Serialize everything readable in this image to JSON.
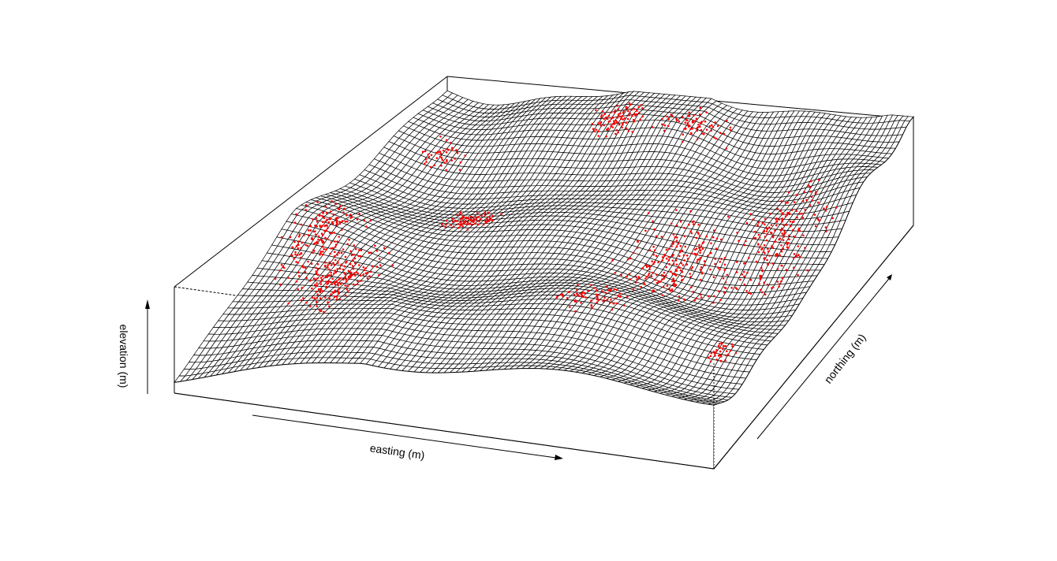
{
  "chart_data": {
    "type": "surface3d",
    "title": "",
    "xlabel": "easting (m)",
    "ylabel": "northing (m)",
    "zlabel": "elevation (m)",
    "axes": "labels only, no ticks, arrows indicate direction",
    "surface": {
      "style": "wireframe mesh",
      "line_color": "#000000",
      "grid": [
        90,
        56
      ],
      "description_values": "synthetic terrain with rolling ridges, rising toward the back"
    },
    "points": {
      "name": "",
      "color": "#ff0000",
      "clusters": [
        {
          "cx": 0.07,
          "cy": 0.4,
          "n": 170,
          "sx": 0.05,
          "sy": 0.09
        },
        {
          "cx": 0.16,
          "cy": 0.3,
          "n": 190,
          "sx": 0.05,
          "sy": 0.1
        },
        {
          "cx": 0.27,
          "cy": 0.58,
          "n": 80,
          "sx": 0.05,
          "sy": 0.04
        },
        {
          "cx": 0.1,
          "cy": 0.8,
          "n": 40,
          "sx": 0.04,
          "sy": 0.04
        },
        {
          "cx": 0.42,
          "cy": 0.9,
          "n": 90,
          "sx": 0.05,
          "sy": 0.04
        },
        {
          "cx": 0.58,
          "cy": 0.9,
          "n": 70,
          "sx": 0.06,
          "sy": 0.04
        },
        {
          "cx": 0.66,
          "cy": 0.28,
          "n": 70,
          "sx": 0.05,
          "sy": 0.05
        },
        {
          "cx": 0.72,
          "cy": 0.52,
          "n": 210,
          "sx": 0.08,
          "sy": 0.11
        },
        {
          "cx": 0.88,
          "cy": 0.62,
          "n": 220,
          "sx": 0.07,
          "sy": 0.14
        },
        {
          "cx": 0.93,
          "cy": 0.22,
          "n": 35,
          "sx": 0.02,
          "sy": 0.03
        }
      ]
    },
    "colors": {
      "mesh": "#000000",
      "points": "#ff0000",
      "box": "#000000"
    }
  }
}
